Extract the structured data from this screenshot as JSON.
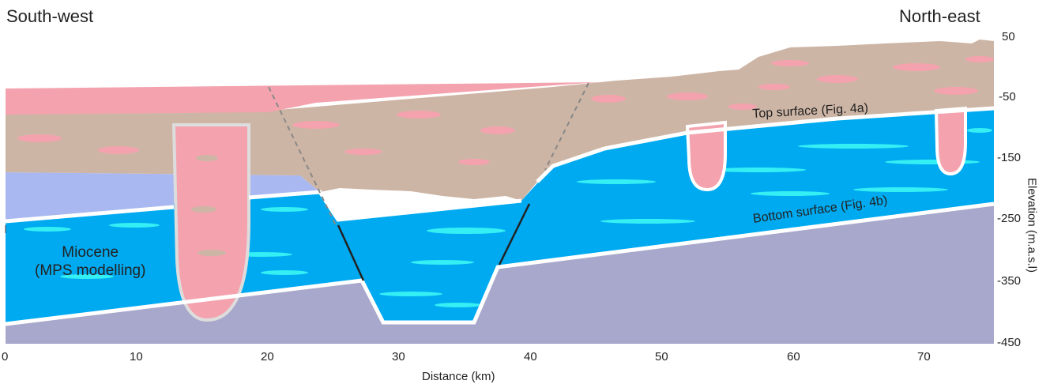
{
  "labels": {
    "southwest": "South-west",
    "northeast": "North-east",
    "miocene_line1": "Miocene",
    "miocene_line2": "(MPS modelling)",
    "top_surface": "Top surface (Fig. 4a)",
    "bottom_surface": "Bottom surface (Fig. 4b)"
  },
  "x_axis": {
    "label": "Distance (km)",
    "ticks": [
      "0",
      "10",
      "20",
      "30",
      "40",
      "50",
      "60",
      "70"
    ]
  },
  "y_axis": {
    "label": "Elevation (m.a.s.l)",
    "ticks": [
      "50",
      "-50",
      "-150",
      "-250",
      "-350",
      "-450"
    ]
  },
  "colors": {
    "pink_unit": "#f4a3ae",
    "brown_unit": "#cdb5a5",
    "light_blue_unit": "#a9b8f0",
    "miocene_blue": "#00aaf0",
    "cyan_lenses": "#34f0f4",
    "basement": "#a8a8cc"
  }
}
